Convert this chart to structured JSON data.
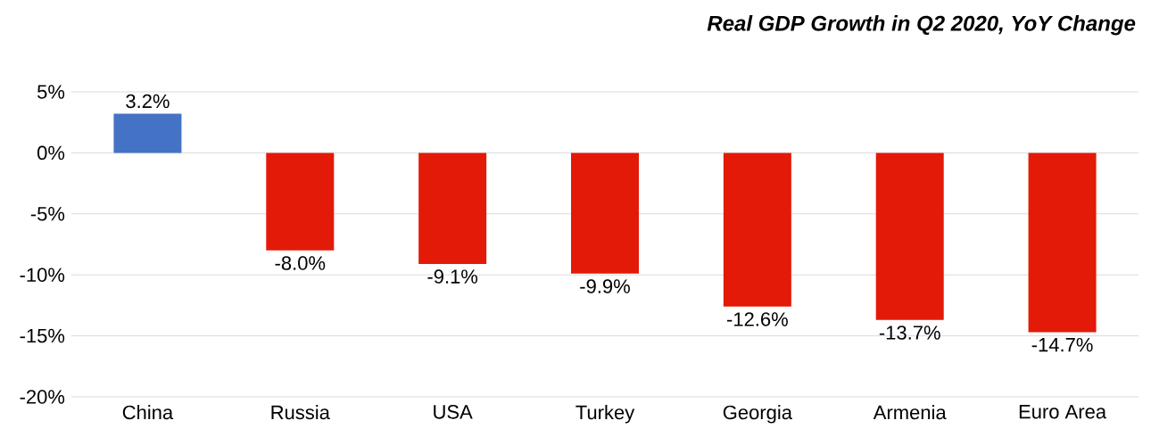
{
  "chart_data": {
    "type": "bar",
    "title": "Real GDP Growth in Q2 2020, YoY Change",
    "categories": [
      "China",
      "Russia",
      "USA",
      "Turkey",
      "Georgia",
      "Armenia",
      "Euro Area"
    ],
    "values": [
      3.2,
      -8.0,
      -9.1,
      -9.9,
      -12.6,
      -13.7,
      -14.7
    ],
    "value_labels": [
      "3.2%",
      "-8.0%",
      "-9.1%",
      "-9.9%",
      "-12.6%",
      "-13.7%",
      "-14.7%"
    ],
    "colors": [
      "#4472c4",
      "#e31a08",
      "#e31a08",
      "#e31a08",
      "#e31a08",
      "#e31a08",
      "#e31a08"
    ],
    "ylim": [
      -20,
      5
    ],
    "yticks": [
      {
        "value": -20,
        "label": "-20%"
      },
      {
        "value": -15,
        "label": "-15%"
      },
      {
        "value": -10,
        "label": "-10%"
      },
      {
        "value": -5,
        "label": "-5%"
      },
      {
        "value": 0,
        "label": "0%"
      },
      {
        "value": 5,
        "label": "5%"
      }
    ],
    "grid": "y"
  }
}
